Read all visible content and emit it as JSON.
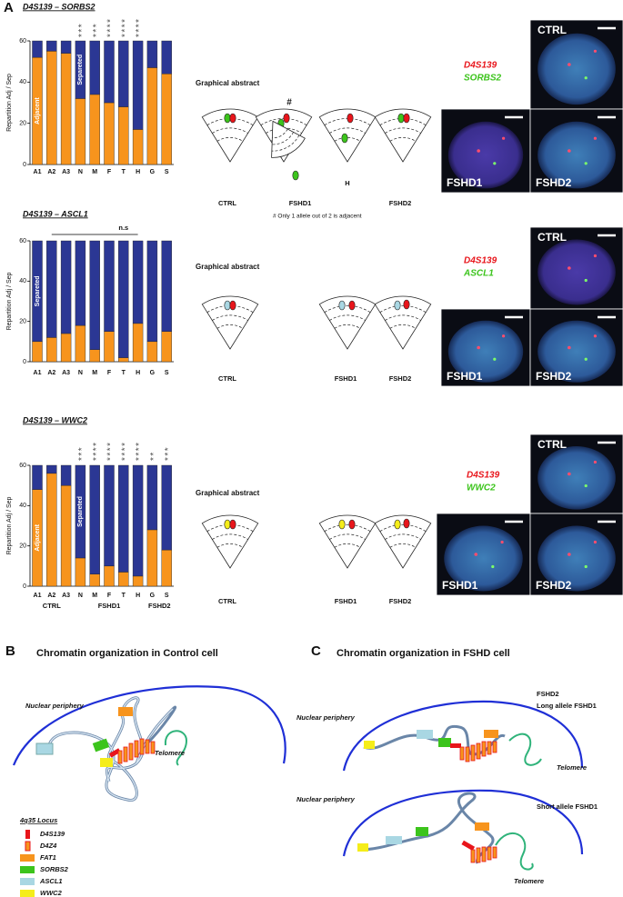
{
  "panel_a": {
    "label": "A"
  },
  "chart_data": [
    {
      "type": "bar",
      "stacked": true,
      "title": "D4S139 – SORBS2",
      "ylabel": "Repartition Adj / Sep",
      "categories": [
        "A1",
        "A2",
        "A3",
        "N",
        "M",
        "F",
        "T",
        "H",
        "G",
        "S"
      ],
      "ylim": [
        0,
        60
      ],
      "yticks": [
        0,
        20,
        40,
        60
      ],
      "series": [
        {
          "name": "Adjacent",
          "color": "#f7941d",
          "values": [
            52,
            55,
            54,
            32,
            34,
            30,
            28,
            17,
            47,
            44
          ]
        },
        {
          "name": "Separeted",
          "color": "#2b3794",
          "values": [
            8,
            5,
            6,
            28,
            26,
            30,
            32,
            43,
            13,
            16
          ]
        }
      ],
      "significance": [
        null,
        null,
        null,
        "***",
        "***",
        "****",
        "****",
        "****",
        null,
        null
      ]
    },
    {
      "type": "bar",
      "stacked": true,
      "title": "D4S139 – ASCL1",
      "ylabel": "Repartition Adj / Sep",
      "categories": [
        "A1",
        "A2",
        "A3",
        "N",
        "M",
        "F",
        "T",
        "H",
        "G",
        "S"
      ],
      "ylim": [
        0,
        60
      ],
      "yticks": [
        0,
        20,
        40,
        60
      ],
      "series": [
        {
          "name": "Adjacent",
          "color": "#f7941d",
          "values": [
            10,
            12,
            14,
            18,
            6,
            15,
            2,
            19,
            10,
            15
          ]
        },
        {
          "name": "Separeted",
          "color": "#2b3794",
          "values": [
            50,
            48,
            46,
            42,
            54,
            45,
            58,
            41,
            50,
            45
          ]
        }
      ],
      "annotation": "n.s"
    },
    {
      "type": "bar",
      "stacked": true,
      "title": "D4S139 – WWC2",
      "ylabel": "Repartition Adj / Sep",
      "categories": [
        "A1",
        "A2",
        "A3",
        "N",
        "M",
        "F",
        "T",
        "H",
        "G",
        "S"
      ],
      "ylim": [
        0,
        60
      ],
      "yticks": [
        0,
        20,
        40,
        60
      ],
      "series": [
        {
          "name": "Adjacent",
          "color": "#f7941d",
          "values": [
            48,
            56,
            50,
            14,
            6,
            10,
            7,
            5,
            28,
            18
          ]
        },
        {
          "name": "Separeted",
          "color": "#2b3794",
          "values": [
            12,
            4,
            10,
            46,
            54,
            50,
            53,
            55,
            32,
            42
          ]
        }
      ],
      "significance": [
        null,
        null,
        null,
        "***",
        "****",
        "****",
        "****",
        "****",
        "**",
        "***"
      ],
      "group_labels": [
        "CTRL",
        "FSHD1",
        "FSHD2"
      ]
    }
  ],
  "abstracts": [
    {
      "title": "Graphical abstract",
      "labels": [
        "CTRL",
        "FSHD1",
        "FSHD2"
      ],
      "marker": "#",
      "sample": "H",
      "footnote": "# Only 1 allele out of 2 is adjacent"
    },
    {
      "title": "Graphical abstract",
      "labels": [
        "CTRL",
        "FSHD1",
        "FSHD2"
      ]
    },
    {
      "title": "Graphical abstract",
      "labels": [
        "CTRL",
        "FSHD1",
        "FSHD2"
      ]
    }
  ],
  "micrographs": [
    {
      "probes": [
        "D4S139",
        "SORBS2"
      ],
      "panels": [
        "CTRL",
        "FSHD1",
        "FSHD2"
      ]
    },
    {
      "probes": [
        "D4S139",
        "ASCL1"
      ],
      "panels": [
        "CTRL",
        "FSHD1",
        "FSHD2"
      ]
    },
    {
      "probes": [
        "D4S139",
        "WWC2"
      ],
      "panels": [
        "CTRL",
        "FSHD1",
        "FSHD2"
      ]
    }
  ],
  "panel_b": {
    "label": "B",
    "title": "Chromatin organization in Control cell",
    "periphery": "Nuclear periphery",
    "telomere": "Telomere",
    "legend_title": "4q35 Locus",
    "legend": [
      {
        "name": "D4S139",
        "color": "#e8151b"
      },
      {
        "name": "D4Z4",
        "color": "#f7941d"
      },
      {
        "name": "FAT1",
        "color": "#f7941d"
      },
      {
        "name": "SORBS2",
        "color": "#3cc41c"
      },
      {
        "name": "ASCL1",
        "color": "#a9d7e3"
      },
      {
        "name": "WWC2",
        "color": "#f5ed1a"
      }
    ]
  },
  "panel_c": {
    "label": "C",
    "title": "Chromatin organization in FSHD cell",
    "upper": {
      "periphery": "Nuclear periphery",
      "group": "FSHD2",
      "allele": "Long allele FSHD1",
      "telomere": "Telomere"
    },
    "lower": {
      "periphery": "Nuclear periphery",
      "allele": "Short allele FSHD1",
      "telomere": "Telomere"
    }
  }
}
